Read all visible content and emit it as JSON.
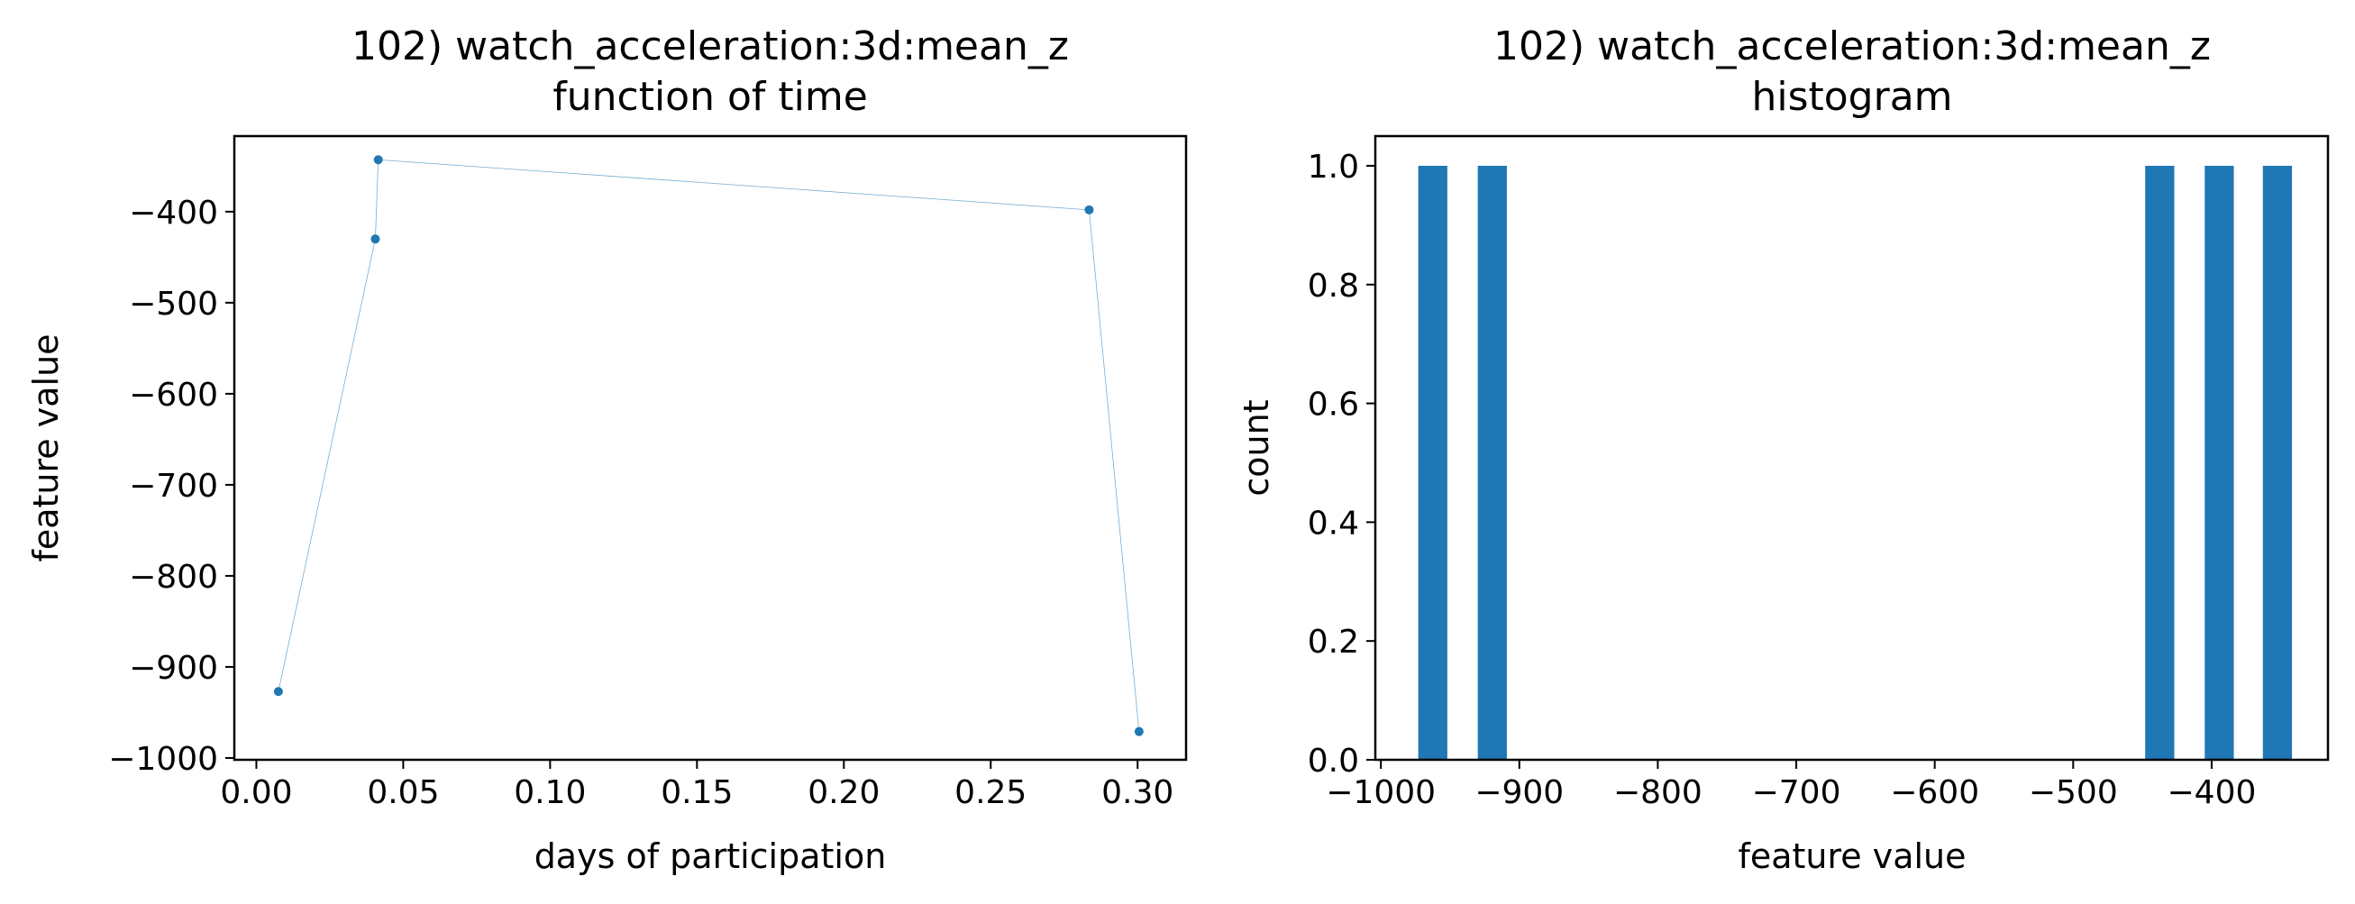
{
  "figure": {
    "panels": {
      "left": {
        "title_line1": "102) watch_acceleration:3d:mean_z",
        "title_line2": "function of time",
        "xlabel": "days of participation",
        "ylabel": "feature value"
      },
      "right": {
        "title_line1": "102) watch_acceleration:3d:mean_z",
        "title_line2": "histogram",
        "xlabel": "feature value",
        "ylabel": "count"
      }
    }
  },
  "colors": {
    "series": "#1f77b4"
  },
  "chart_data": [
    {
      "type": "line",
      "title": "102) watch_acceleration:3d:mean_z function of time",
      "xlabel": "days of participation",
      "ylabel": "feature value",
      "xlim": [
        -0.0075,
        0.3165
      ],
      "ylim": [
        -1002,
        -317
      ],
      "xticks": [
        0.0,
        0.05,
        0.1,
        0.15,
        0.2,
        0.25,
        0.3
      ],
      "xtick_labels": [
        "0.00",
        "0.05",
        "0.10",
        "0.15",
        "0.20",
        "0.25",
        "0.30"
      ],
      "yticks": [
        -1000,
        -900,
        -800,
        -700,
        -600,
        -500,
        -400
      ],
      "ytick_labels": [
        "−1000",
        "−900",
        "−800",
        "−700",
        "−600",
        "−500",
        "−400"
      ],
      "series": [
        {
          "x": [
            0.0075,
            0.0405,
            0.0415,
            0.2835,
            0.3005
          ],
          "y": [
            -927,
            -430,
            -343,
            -398,
            -971
          ]
        }
      ],
      "grid": false
    },
    {
      "type": "bar",
      "title": "102) watch_acceleration:3d:mean_z histogram",
      "xlabel": "feature value",
      "ylabel": "count",
      "xlim": [
        -1004,
        -316
      ],
      "ylim": [
        0,
        1.05
      ],
      "xticks": [
        -1000,
        -900,
        -800,
        -700,
        -600,
        -500,
        -400
      ],
      "xtick_labels": [
        "−1000",
        "−900",
        "−800",
        "−700",
        "−600",
        "−500",
        "−400"
      ],
      "yticks": [
        0.0,
        0.2,
        0.4,
        0.6,
        0.8,
        1.0
      ],
      "ytick_labels": [
        "0.0",
        "0.2",
        "0.4",
        "0.6",
        "0.8",
        "1.0"
      ],
      "bins": [
        {
          "x0": -973,
          "x1": -952,
          "count": 1
        },
        {
          "x0": -930,
          "x1": -909,
          "count": 1
        },
        {
          "x0": -448,
          "x1": -427,
          "count": 1
        },
        {
          "x0": -405,
          "x1": -384,
          "count": 1
        },
        {
          "x0": -363,
          "x1": -342,
          "count": 1
        }
      ],
      "grid": false
    }
  ]
}
